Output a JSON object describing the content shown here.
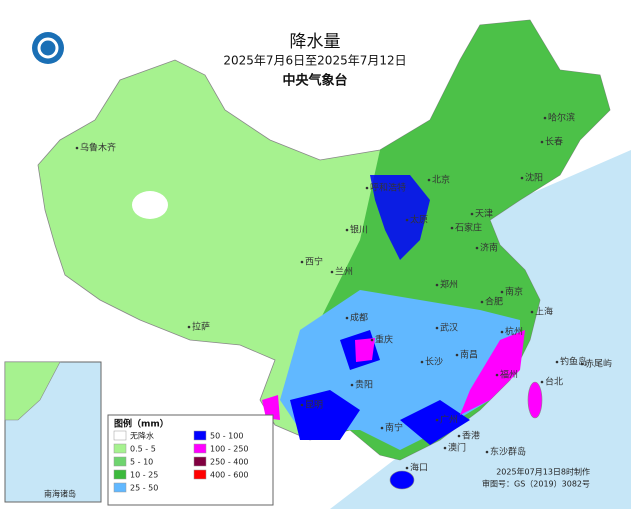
{
  "header": {
    "title": "降水量",
    "period": "2025年7月6日至2025年7月12日",
    "agency": "中央气象台"
  },
  "legend": {
    "title": "图例（mm）",
    "items": [
      {
        "label": "无降水",
        "color": "#ffffff"
      },
      {
        "label": "0.5 - 5",
        "color": "#a6f28f"
      },
      {
        "label": "5 - 10",
        "color": "#6fd46f"
      },
      {
        "label": "10 - 25",
        "color": "#3cb93c"
      },
      {
        "label": "25 - 50",
        "color": "#61b8ff"
      },
      {
        "label": "50 - 100",
        "color": "#0000ff"
      },
      {
        "label": "100 - 250",
        "color": "#ff00ff"
      },
      {
        "label": "250 - 400",
        "color": "#800040"
      },
      {
        "label": "400 - 600",
        "color": "#ff0000"
      }
    ]
  },
  "cities": [
    "哈尔滨",
    "长春",
    "沈阳",
    "乌鲁木齐",
    "呼和浩特",
    "北京",
    "天津",
    "银川",
    "太原",
    "石家庄",
    "济南",
    "西宁",
    "兰州",
    "郑州",
    "合肥",
    "南京",
    "上海",
    "拉萨",
    "成都",
    "武汉",
    "杭州",
    "重庆",
    "长沙",
    "南昌",
    "福州",
    "贵阳",
    "台北",
    "昆明",
    "南宁",
    "广州",
    "香港",
    "澳门",
    "海口",
    "钓鱼岛",
    "赤尾屿",
    "东沙群岛"
  ],
  "inset": {
    "label": "南海诸岛"
  },
  "footer": {
    "made": "2025年07月13日8时制作",
    "approval": "审图号：GS（2019）3082号"
  }
}
